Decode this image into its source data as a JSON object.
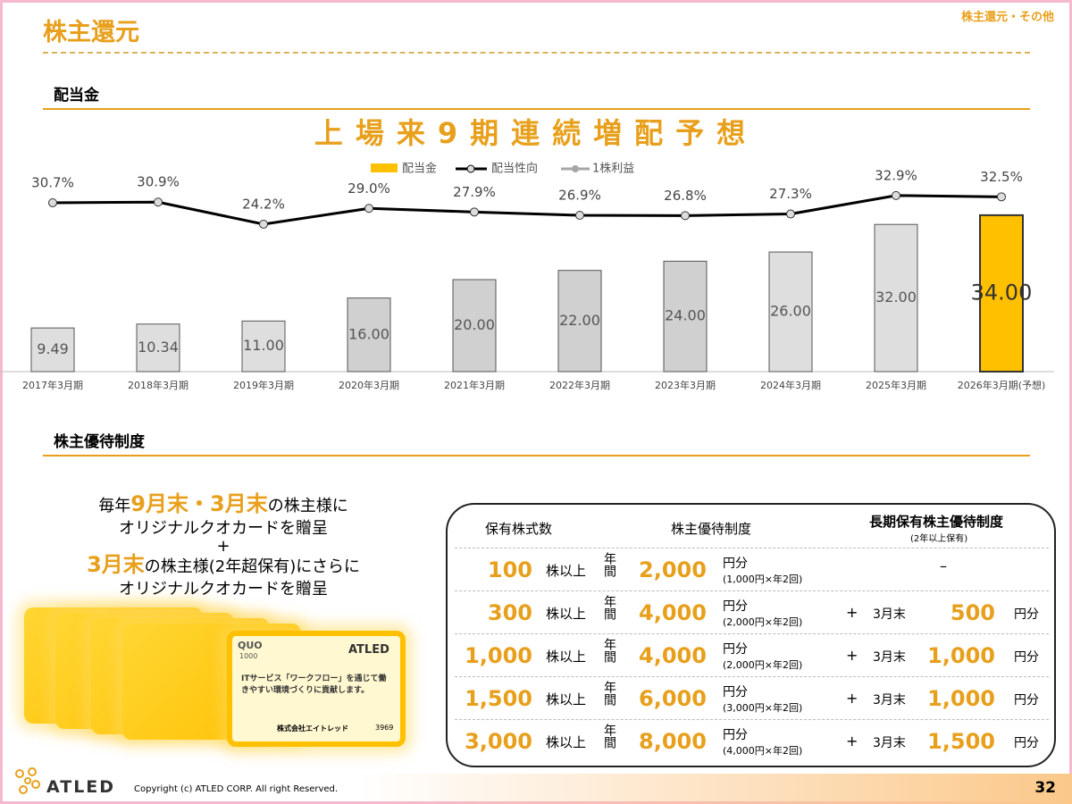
{
  "header": {
    "title": "株主還元",
    "section": "株主還元・その他"
  },
  "section1": "配当金",
  "banner": "上場来9期連続増配予想",
  "chart_data": {
    "type": "bar",
    "categories": [
      "2017年3月期",
      "2018年3月期",
      "2019年3月期",
      "2020年3月期",
      "2021年3月期",
      "2022年3月期",
      "2023年3月期",
      "2024年3月期",
      "2025年3月期",
      "2026年3月期(予想)"
    ],
    "series": [
      {
        "name": "配当金",
        "type": "bar",
        "color": "#ffc000",
        "colors": [
          "#dedede",
          "#dedede",
          "#dedede",
          "#d0d0d0",
          "#d0d0d0",
          "#d0d0d0",
          "#d0d0d0",
          "#dedede",
          "#dedede",
          "#ffc000"
        ],
        "values": [
          9.49,
          10.34,
          11.0,
          16.0,
          20.0,
          22.0,
          24.0,
          26.0,
          32.0,
          34.0
        ],
        "value_labels": [
          "9.49",
          "10.34",
          "11.00",
          "16.00",
          "20.00",
          "22.00",
          "24.00",
          "26.00",
          "32.00",
          "34.00"
        ]
      },
      {
        "name": "配当性向",
        "type": "line",
        "axis": "y2",
        "color": "#000000",
        "values": [
          30.7,
          30.9,
          24.2,
          29.0,
          27.9,
          26.9,
          26.8,
          27.3,
          32.9,
          32.5
        ],
        "value_labels": [
          "30.7%",
          "30.9%",
          "24.2%",
          "29.0%",
          "27.9%",
          "26.9%",
          "26.8%",
          "27.3%",
          "32.9%",
          "32.5%"
        ]
      }
    ],
    "legend_extra": {
      "name": "1株利益",
      "color": "#a6a6a6"
    },
    "ylim": [
      0,
      40
    ],
    "y2lim": [
      -20.5,
      35.3
    ]
  },
  "section2": "株主優待制度",
  "benefit_text": {
    "line1": [
      "毎年",
      "9月末・3月末",
      "の株主様に"
    ],
    "line2": "オリジナルクオカードを贈呈",
    "plus": "+",
    "line3": [
      "3月末",
      "の株主様(2年超保有)にさらに"
    ],
    "line4": "オリジナルクオカードを贈呈"
  },
  "card": {
    "brand": "QUO",
    "amount": "1000",
    "logo": "ATLED",
    "message": "ITサービス「ワークフロー」を通じて働きやすい環境づくりに貢献します。",
    "company": "株式会社エイトレッド",
    "code": "3969"
  },
  "table": {
    "headers": [
      "保有株式数",
      "株主優待制度",
      "長期保有株主優待制度"
    ],
    "subheader": "(2年以上保有)",
    "rows": [
      {
        "shares": "100",
        "unit": "株以上",
        "period": "年間",
        "amount": "2,000",
        "yen": "円分",
        "detail": "(1,000円×年2回)",
        "long": "–"
      },
      {
        "shares": "300",
        "unit": "株以上",
        "period": "年間",
        "amount": "4,000",
        "yen": "円分",
        "detail": "(2,000円×年2回)",
        "plus": "+",
        "timing": "3月末",
        "long": "500",
        "long_unit": "円分"
      },
      {
        "shares": "1,000",
        "unit": "株以上",
        "period": "年間",
        "amount": "4,000",
        "yen": "円分",
        "detail": "(2,000円×年2回)",
        "plus": "+",
        "timing": "3月末",
        "long": "1,000",
        "long_unit": "円分"
      },
      {
        "shares": "1,500",
        "unit": "株以上",
        "period": "年間",
        "amount": "6,000",
        "yen": "円分",
        "detail": "(3,000円×年2回)",
        "plus": "+",
        "timing": "3月末",
        "long": "1,000",
        "long_unit": "円分"
      },
      {
        "shares": "3,000",
        "unit": "株以上",
        "period": "年間",
        "amount": "8,000",
        "yen": "円分",
        "detail": "(4,000円×年2回)",
        "plus": "+",
        "timing": "3月末",
        "long": "1,500",
        "long_unit": "円分"
      }
    ]
  },
  "footer": {
    "logo": "ATLED",
    "copyright": "Copyright (c) ATLED CORP. All right Reserved.",
    "page": "32"
  }
}
